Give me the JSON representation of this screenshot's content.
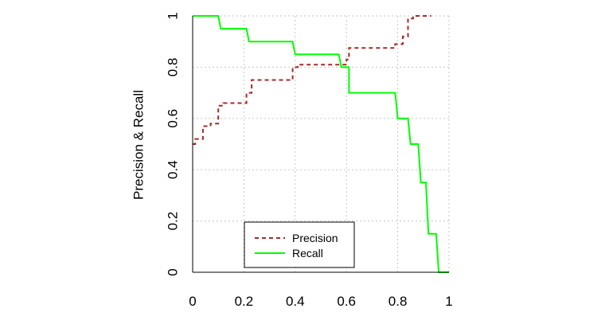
{
  "chart_data": {
    "type": "line",
    "xlabel": "",
    "ylabel": "Precision & Recall",
    "xlim": [
      0,
      1
    ],
    "ylim": [
      0,
      1
    ],
    "x_ticks": [
      "0",
      "0.2",
      "0.4",
      "0.6",
      "0.8",
      "1"
    ],
    "y_ticks": [
      "0",
      "0.2",
      "0.4",
      "0.6",
      "0.8",
      "1"
    ],
    "grid": true,
    "legend_position": "bottom-center",
    "series": [
      {
        "name": "Precision",
        "color": "#a52a2a",
        "line_style": "dashed",
        "x": [
          0.0,
          0.01,
          0.01,
          0.04,
          0.04,
          0.07,
          0.07,
          0.1,
          0.1,
          0.12,
          0.12,
          0.21,
          0.21,
          0.23,
          0.23,
          0.39,
          0.39,
          0.41,
          0.41,
          0.6,
          0.6,
          0.61,
          0.61,
          0.79,
          0.79,
          0.82,
          0.82,
          0.84,
          0.84,
          0.86,
          0.86,
          0.93
        ],
        "y": [
          0.5,
          0.5,
          0.52,
          0.52,
          0.57,
          0.57,
          0.58,
          0.58,
          0.65,
          0.65,
          0.66,
          0.66,
          0.7,
          0.7,
          0.75,
          0.75,
          0.8,
          0.8,
          0.81,
          0.81,
          0.83,
          0.83,
          0.875,
          0.875,
          0.89,
          0.89,
          0.92,
          0.92,
          0.99,
          0.99,
          1.0,
          1.0
        ]
      },
      {
        "name": "Recall",
        "color": "#00ff00",
        "line_style": "solid",
        "x": [
          0.0,
          0.1,
          0.11,
          0.21,
          0.22,
          0.39,
          0.4,
          0.57,
          0.58,
          0.61,
          0.61,
          0.79,
          0.8,
          0.84,
          0.85,
          0.88,
          0.89,
          0.91,
          0.92,
          0.95,
          0.96,
          1.0
        ],
        "y": [
          1.0,
          1.0,
          0.95,
          0.95,
          0.9,
          0.9,
          0.85,
          0.85,
          0.8,
          0.8,
          0.7,
          0.7,
          0.6,
          0.6,
          0.5,
          0.5,
          0.35,
          0.35,
          0.15,
          0.15,
          0.0,
          0.0
        ]
      }
    ]
  }
}
